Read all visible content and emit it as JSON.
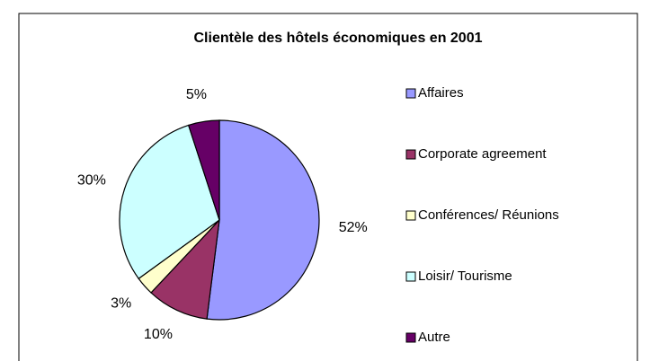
{
  "chart_data": {
    "type": "pie",
    "title": "Clientèle des hôtels économiques en 2001",
    "categories": [
      "Affaires",
      "Corporate agreement",
      "Conférences/ Réunions",
      "Loisir/ Tourisme",
      "Autre"
    ],
    "values": [
      52,
      10,
      3,
      30,
      5
    ],
    "value_labels": [
      "52%",
      "10%",
      "3%",
      "30%",
      "5%"
    ],
    "colors": [
      "#9999ff",
      "#993366",
      "#ffffcc",
      "#ccffff",
      "#660066"
    ],
    "legend": "right"
  }
}
